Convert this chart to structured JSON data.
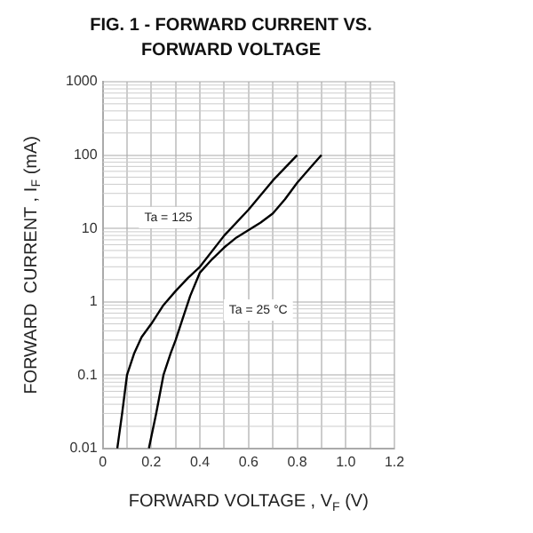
{
  "chart_data": {
    "type": "line",
    "title": "FIG. 1 - FORWARD CURRENT VS. FORWARD VOLTAGE",
    "xlabel": "FORWARD VOLTAGE , V$_{F}$ (V)",
    "ylabel": "FORWARD  CURRENT , I$_{F}$ (mA)",
    "series": [
      {
        "color": "#000000",
        "x": [
          0.06,
          0.08,
          0.1,
          0.13,
          0.16,
          0.2,
          0.25,
          0.3,
          0.35,
          0.4,
          0.5,
          0.6,
          0.7,
          0.8
        ],
        "values": [
          0.01,
          0.03,
          0.1,
          0.2,
          0.33,
          0.5,
          0.9,
          1.4,
          2.1,
          3,
          8,
          18,
          45,
          100
        ]
      },
      {
        "color": "#000000",
        "x": [
          0.19,
          0.22,
          0.25,
          0.28,
          0.3,
          0.33,
          0.36,
          0.4,
          0.45,
          0.5,
          0.55,
          0.6,
          0.65,
          0.7,
          0.75,
          0.8,
          0.85,
          0.9
        ],
        "values": [
          0.01,
          0.03,
          0.1,
          0.2,
          0.3,
          0.6,
          1.2,
          2.5,
          3.8,
          5.5,
          7.5,
          9.5,
          12,
          16,
          25,
          42,
          65,
          100
        ]
      }
    ],
    "annotations": [
      {
        "text": "Ta = 125",
        "x": 0.27,
        "y": 14
      },
      {
        "text": "Ta = 25 °C",
        "x": 0.64,
        "y": 0.77
      }
    ],
    "xlim": [
      0,
      1.2
    ],
    "xticks": [
      0,
      {
        "value": 0.1,
        "label": null
      },
      0.2,
      {
        "value": 0.3,
        "label": null
      },
      0.4,
      {
        "value": 0.5,
        "label": null
      },
      0.6,
      {
        "value": 0.7,
        "label": null
      },
      0.8,
      {
        "value": 0.9,
        "label": null
      },
      {
        "value": 1,
        "label": "1.0"
      },
      {
        "value": 1.1,
        "label": null
      },
      1.2
    ],
    "ylim": [
      0.01,
      1000
    ],
    "yticks": [
      0.01,
      0.1,
      1,
      10,
      100,
      1000
    ],
    "log": "y",
    "grid": true,
    "legend": false,
    "marker": "none",
    "line_style": "solid"
  }
}
